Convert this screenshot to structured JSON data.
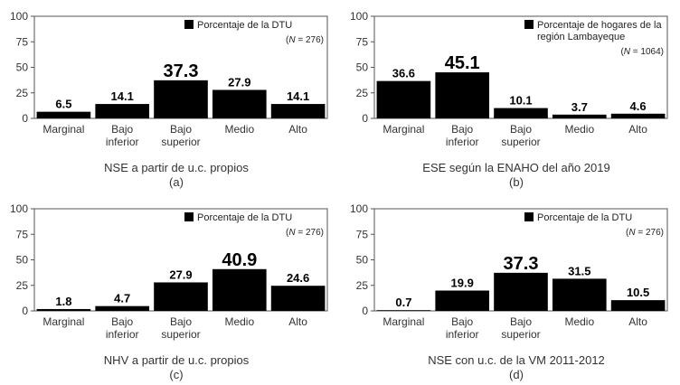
{
  "chart_data": [
    {
      "type": "bar",
      "categories": [
        "Marginal",
        "Bajo inferior",
        "Bajo superior",
        "Medio",
        "Alto"
      ],
      "series": [
        {
          "name": "Porcentaje de la DTU",
          "values": [
            6.5,
            14.1,
            37.3,
            27.9,
            14.1
          ]
        }
      ],
      "legend_lines": [
        "Porcentaje de la DTU"
      ],
      "n_note": [
        "(",
        "N",
        " = 276)"
      ],
      "highlight_index": 2,
      "yticks": [
        0,
        25,
        50,
        75,
        100
      ],
      "ylim": [
        0,
        100
      ],
      "xlabel": "NSE a partir de u.c. propios",
      "panel_label": "(a)",
      "legend_position": "top-right",
      "grid": false,
      "color": "#000000"
    },
    {
      "type": "bar",
      "categories": [
        "Marginal",
        "Bajo inferior",
        "Bajo superior",
        "Medio",
        "Alto"
      ],
      "series": [
        {
          "name": "Porcentaje de hogares de la región Lambayeque",
          "values": [
            36.6,
            45.1,
            10.1,
            3.7,
            4.6
          ]
        }
      ],
      "legend_lines": [
        "Porcentaje de hogares de la",
        "región Lambayeque"
      ],
      "n_note": [
        "(",
        "N",
        " = 1064)"
      ],
      "highlight_index": 1,
      "yticks": [
        0,
        25,
        50,
        75,
        100
      ],
      "ylim": [
        0,
        100
      ],
      "xlabel": "ESE según la ENAHO del año 2019",
      "panel_label": "(b)",
      "legend_position": "top-right",
      "grid": false,
      "color": "#000000"
    },
    {
      "type": "bar",
      "categories": [
        "Marginal",
        "Bajo inferior",
        "Bajo superior",
        "Medio",
        "Alto"
      ],
      "series": [
        {
          "name": "Porcentaje de la DTU",
          "values": [
            1.8,
            4.7,
            27.9,
            40.9,
            24.6
          ]
        }
      ],
      "legend_lines": [
        "Porcentaje de la DTU"
      ],
      "n_note": [
        "(",
        "N",
        " = 276)"
      ],
      "highlight_index": 3,
      "yticks": [
        0,
        25,
        50,
        75,
        100
      ],
      "ylim": [
        0,
        100
      ],
      "xlabel": "NHV a partir de u.c. propios",
      "panel_label": "(c)",
      "legend_position": "top-right",
      "grid": false,
      "color": "#000000"
    },
    {
      "type": "bar",
      "categories": [
        "Marginal",
        "Bajo inferior",
        "Bajo superior",
        "Medio",
        "Alto"
      ],
      "series": [
        {
          "name": "Porcentaje de la DTU",
          "values": [
            0.7,
            19.9,
            37.3,
            31.5,
            10.5
          ]
        }
      ],
      "legend_lines": [
        "Porcentaje de la DTU"
      ],
      "n_note": [
        "(",
        "N",
        " = 276)"
      ],
      "highlight_index": 2,
      "yticks": [
        0,
        25,
        50,
        75,
        100
      ],
      "ylim": [
        0,
        100
      ],
      "xlabel": "NSE con u.c. de la VM 2011-2012",
      "panel_label": "(d)",
      "legend_position": "top-right",
      "grid": false,
      "color": "#000000"
    }
  ]
}
